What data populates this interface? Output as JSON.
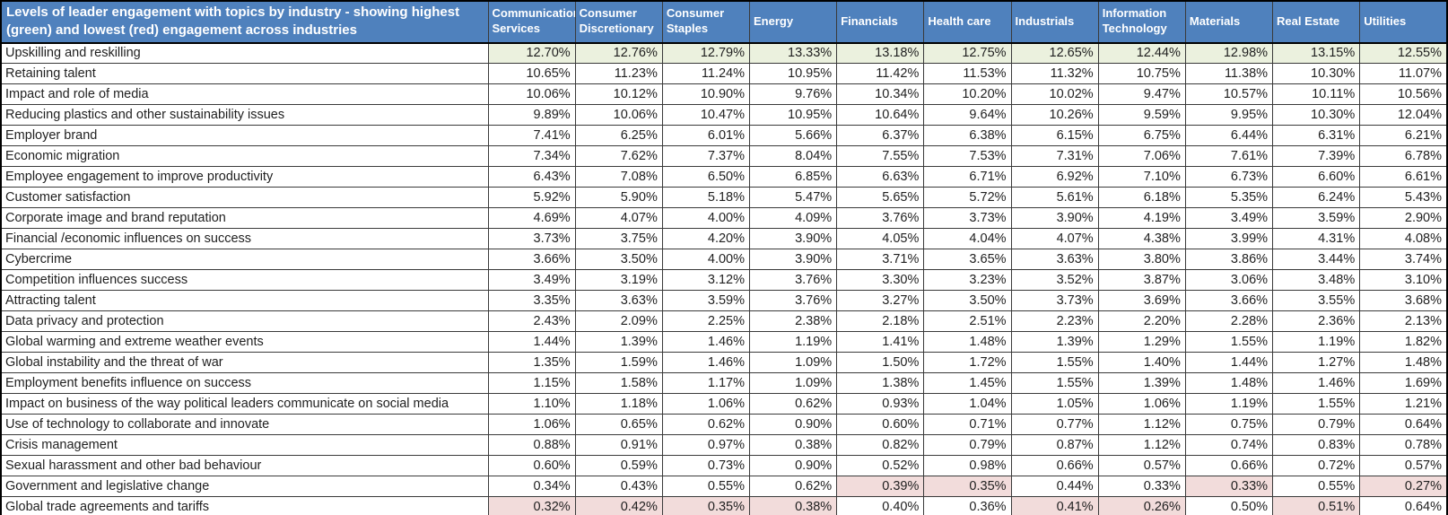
{
  "colors": {
    "header_bg": "#4f81bd",
    "header_text": "#ffffff",
    "highest_green": "#ebf1de",
    "lowest_red": "#f2dcdb",
    "body_text": "#1f1f1f",
    "border": "#000000"
  },
  "chart_data": {
    "type": "table",
    "title": "Levels of leader engagement with topics by industry - showing highest (green) and lowest (red) engagement across industries",
    "legend": {
      "green_means": "highest engagement across industries",
      "red_means": "lowest engagement across industries"
    },
    "columns": [
      "Communication Services",
      "Consumer Discretionary",
      "Consumer Staples",
      "Energy",
      "Financials",
      "Health care",
      "Industrials",
      "Information Technology",
      "Materials",
      "Real Estate",
      "Utilities"
    ],
    "rows": [
      {
        "topic": "Upskilling and reskilling",
        "values": [
          "12.70%",
          "12.76%",
          "12.79%",
          "13.33%",
          "13.18%",
          "12.75%",
          "12.65%",
          "12.44%",
          "12.98%",
          "13.15%",
          "12.55%"
        ],
        "green_cells": [
          0,
          1,
          2,
          3,
          4,
          5,
          6,
          7,
          8,
          9,
          10
        ],
        "red_cells": []
      },
      {
        "topic": "Retaining talent",
        "values": [
          "10.65%",
          "11.23%",
          "11.24%",
          "10.95%",
          "11.42%",
          "11.53%",
          "11.32%",
          "10.75%",
          "11.38%",
          "10.30%",
          "11.07%"
        ],
        "green_cells": [],
        "red_cells": []
      },
      {
        "topic": "Impact and role of media",
        "values": [
          "10.06%",
          "10.12%",
          "10.90%",
          "9.76%",
          "10.34%",
          "10.20%",
          "10.02%",
          "9.47%",
          "10.57%",
          "10.11%",
          "10.56%"
        ],
        "green_cells": [],
        "red_cells": []
      },
      {
        "topic": "Reducing plastics and other sustainability issues",
        "values": [
          "9.89%",
          "10.06%",
          "10.47%",
          "10.95%",
          "10.64%",
          "9.64%",
          "10.26%",
          "9.59%",
          "9.95%",
          "10.30%",
          "12.04%"
        ],
        "green_cells": [],
        "red_cells": []
      },
      {
        "topic": "Employer brand",
        "values": [
          "7.41%",
          "6.25%",
          "6.01%",
          "5.66%",
          "6.37%",
          "6.38%",
          "6.15%",
          "6.75%",
          "6.44%",
          "6.31%",
          "6.21%"
        ],
        "green_cells": [],
        "red_cells": []
      },
      {
        "topic": "Economic migration",
        "values": [
          "7.34%",
          "7.62%",
          "7.37%",
          "8.04%",
          "7.55%",
          "7.53%",
          "7.31%",
          "7.06%",
          "7.61%",
          "7.39%",
          "6.78%"
        ],
        "green_cells": [],
        "red_cells": []
      },
      {
        "topic": "Employee engagement to improve productivity",
        "values": [
          "6.43%",
          "7.08%",
          "6.50%",
          "6.85%",
          "6.63%",
          "6.71%",
          "6.92%",
          "7.10%",
          "6.73%",
          "6.60%",
          "6.61%"
        ],
        "green_cells": [],
        "red_cells": []
      },
      {
        "topic": "Customer satisfaction",
        "values": [
          "5.92%",
          "5.90%",
          "5.18%",
          "5.47%",
          "5.65%",
          "5.72%",
          "5.61%",
          "6.18%",
          "5.35%",
          "6.24%",
          "5.43%"
        ],
        "green_cells": [],
        "red_cells": []
      },
      {
        "topic": "Corporate image and brand reputation",
        "values": [
          "4.69%",
          "4.07%",
          "4.00%",
          "4.09%",
          "3.76%",
          "3.73%",
          "3.90%",
          "4.19%",
          "3.49%",
          "3.59%",
          "2.90%"
        ],
        "green_cells": [],
        "red_cells": []
      },
      {
        "topic": "Financial /economic influences on success",
        "values": [
          "3.73%",
          "3.75%",
          "4.20%",
          "3.90%",
          "4.05%",
          "4.04%",
          "4.07%",
          "4.38%",
          "3.99%",
          "4.31%",
          "4.08%"
        ],
        "green_cells": [],
        "red_cells": []
      },
      {
        "topic": "Cybercrime",
        "values": [
          "3.66%",
          "3.50%",
          "4.00%",
          "3.90%",
          "3.71%",
          "3.65%",
          "3.63%",
          "3.80%",
          "3.86%",
          "3.44%",
          "3.74%"
        ],
        "green_cells": [],
        "red_cells": []
      },
      {
        "topic": "Competition influences success",
        "values": [
          "3.49%",
          "3.19%",
          "3.12%",
          "3.76%",
          "3.30%",
          "3.23%",
          "3.52%",
          "3.87%",
          "3.06%",
          "3.48%",
          "3.10%"
        ],
        "green_cells": [],
        "red_cells": []
      },
      {
        "topic": "Attracting talent",
        "values": [
          "3.35%",
          "3.63%",
          "3.59%",
          "3.76%",
          "3.27%",
          "3.50%",
          "3.73%",
          "3.69%",
          "3.66%",
          "3.55%",
          "3.68%"
        ],
        "green_cells": [],
        "red_cells": []
      },
      {
        "topic": "Data privacy and protection",
        "values": [
          "2.43%",
          "2.09%",
          "2.25%",
          "2.38%",
          "2.18%",
          "2.51%",
          "2.23%",
          "2.20%",
          "2.28%",
          "2.36%",
          "2.13%"
        ],
        "green_cells": [],
        "red_cells": []
      },
      {
        "topic": "Global warming and extreme weather events",
        "values": [
          "1.44%",
          "1.39%",
          "1.46%",
          "1.19%",
          "1.41%",
          "1.48%",
          "1.39%",
          "1.29%",
          "1.55%",
          "1.19%",
          "1.82%"
        ],
        "green_cells": [],
        "red_cells": []
      },
      {
        "topic": "Global instability and the threat of war",
        "values": [
          "1.35%",
          "1.59%",
          "1.46%",
          "1.09%",
          "1.50%",
          "1.72%",
          "1.55%",
          "1.40%",
          "1.44%",
          "1.27%",
          "1.48%"
        ],
        "green_cells": [],
        "red_cells": []
      },
      {
        "topic": "Employment benefits influence on success",
        "values": [
          "1.15%",
          "1.58%",
          "1.17%",
          "1.09%",
          "1.38%",
          "1.45%",
          "1.55%",
          "1.39%",
          "1.48%",
          "1.46%",
          "1.69%"
        ],
        "green_cells": [],
        "red_cells": []
      },
      {
        "topic": "Impact on business of the way political leaders communicate on social media",
        "values": [
          "1.10%",
          "1.18%",
          "1.06%",
          "0.62%",
          "0.93%",
          "1.04%",
          "1.05%",
          "1.06%",
          "1.19%",
          "1.55%",
          "1.21%"
        ],
        "green_cells": [],
        "red_cells": []
      },
      {
        "topic": "Use of technology to collaborate and innovate",
        "values": [
          "1.06%",
          "0.65%",
          "0.62%",
          "0.90%",
          "0.60%",
          "0.71%",
          "0.77%",
          "1.12%",
          "0.75%",
          "0.79%",
          "0.64%"
        ],
        "green_cells": [],
        "red_cells": []
      },
      {
        "topic": "Crisis management",
        "values": [
          "0.88%",
          "0.91%",
          "0.97%",
          "0.38%",
          "0.82%",
          "0.79%",
          "0.87%",
          "1.12%",
          "0.74%",
          "0.83%",
          "0.78%"
        ],
        "green_cells": [],
        "red_cells": []
      },
      {
        "topic": "Sexual harassment and other bad behaviour",
        "values": [
          "0.60%",
          "0.59%",
          "0.73%",
          "0.90%",
          "0.52%",
          "0.98%",
          "0.66%",
          "0.57%",
          "0.66%",
          "0.72%",
          "0.57%"
        ],
        "green_cells": [],
        "red_cells": []
      },
      {
        "topic": "Government and legislative change",
        "values": [
          "0.34%",
          "0.43%",
          "0.55%",
          "0.62%",
          "0.39%",
          "0.35%",
          "0.44%",
          "0.33%",
          "0.33%",
          "0.55%",
          "0.27%"
        ],
        "green_cells": [],
        "red_cells": [
          4,
          5,
          8,
          10
        ]
      },
      {
        "topic": "Global trade agreements and tariffs",
        "values": [
          "0.32%",
          "0.42%",
          "0.35%",
          "0.38%",
          "0.40%",
          "0.36%",
          "0.41%",
          "0.26%",
          "0.50%",
          "0.51%",
          "0.64%"
        ],
        "green_cells": [],
        "red_cells": [
          0,
          1,
          2,
          3,
          6,
          7,
          9
        ]
      }
    ]
  }
}
